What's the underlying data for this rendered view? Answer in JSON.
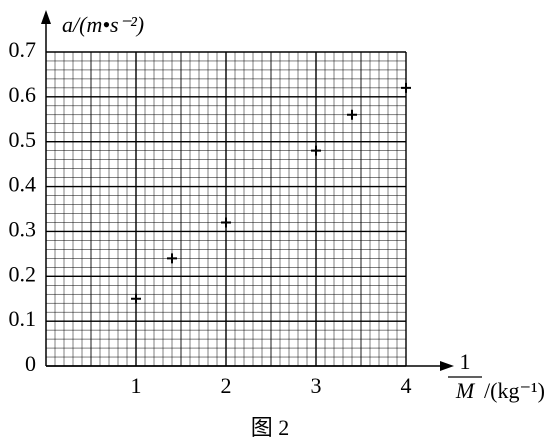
{
  "chart_data": {
    "type": "scatter",
    "y_label": "a/(m•s⁻²)",
    "x_label_numerator": "1",
    "x_label_denominator": "M",
    "x_label_unit": "/(kg⁻¹)",
    "caption": "图 2",
    "x": [
      1,
      1.4,
      2,
      3,
      3.4,
      4
    ],
    "values": [
      0.15,
      0.24,
      0.32,
      0.48,
      0.56,
      0.62
    ],
    "color": "#000000",
    "xlim": [
      0,
      4
    ],
    "xticks": [
      1,
      2,
      3,
      4
    ],
    "ylim": [
      0,
      0.7
    ],
    "yticks": [
      0,
      0.1,
      0.2,
      0.3,
      0.4,
      0.5,
      0.6,
      0.7
    ],
    "grid": true
  }
}
